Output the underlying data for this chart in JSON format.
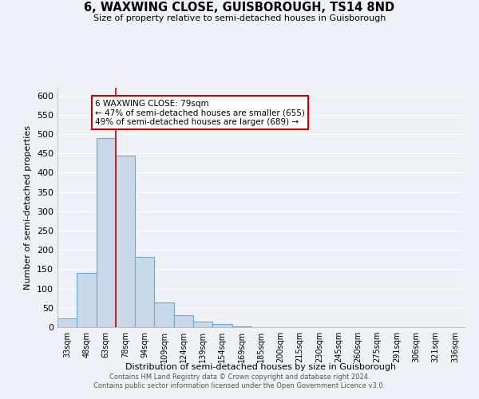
{
  "title": "6, WAXWING CLOSE, GUISBOROUGH, TS14 8ND",
  "subtitle": "Size of property relative to semi-detached houses in Guisborough",
  "xlabel": "Distribution of semi-detached houses by size in Guisborough",
  "ylabel": "Number of semi-detached properties",
  "footer_line1": "Contains HM Land Registry data © Crown copyright and database right 2024.",
  "footer_line2": "Contains public sector information licensed under the Open Government Licence v3.0.",
  "bin_labels": [
    "33sqm",
    "48sqm",
    "63sqm",
    "78sqm",
    "94sqm",
    "109sqm",
    "124sqm",
    "139sqm",
    "154sqm",
    "169sqm",
    "185sqm",
    "200sqm",
    "215sqm",
    "230sqm",
    "245sqm",
    "260sqm",
    "275sqm",
    "291sqm",
    "306sqm",
    "321sqm",
    "336sqm"
  ],
  "bar_values": [
    23,
    140,
    490,
    445,
    182,
    65,
    32,
    15,
    8,
    2,
    1,
    0,
    0,
    0,
    1,
    0,
    0,
    0,
    0,
    0,
    1
  ],
  "bar_color": "#c9d9ea",
  "bar_edge_color": "#6aaad4",
  "property_line_color": "#cc0000",
  "annotation_title": "6 WAXWING CLOSE: 79sqm",
  "annotation_line1": "← 47% of semi-detached houses are smaller (655)",
  "annotation_line2": "49% of semi-detached houses are larger (689) →",
  "annotation_box_color": "#ffffff",
  "annotation_box_edge_color": "#cc0000",
  "ylim": [
    0,
    620
  ],
  "yticks": [
    0,
    50,
    100,
    150,
    200,
    250,
    300,
    350,
    400,
    450,
    500,
    550,
    600
  ],
  "background_color": "#eef2f7",
  "grid_color": "#ffffff",
  "prop_line_bin_index": 3
}
